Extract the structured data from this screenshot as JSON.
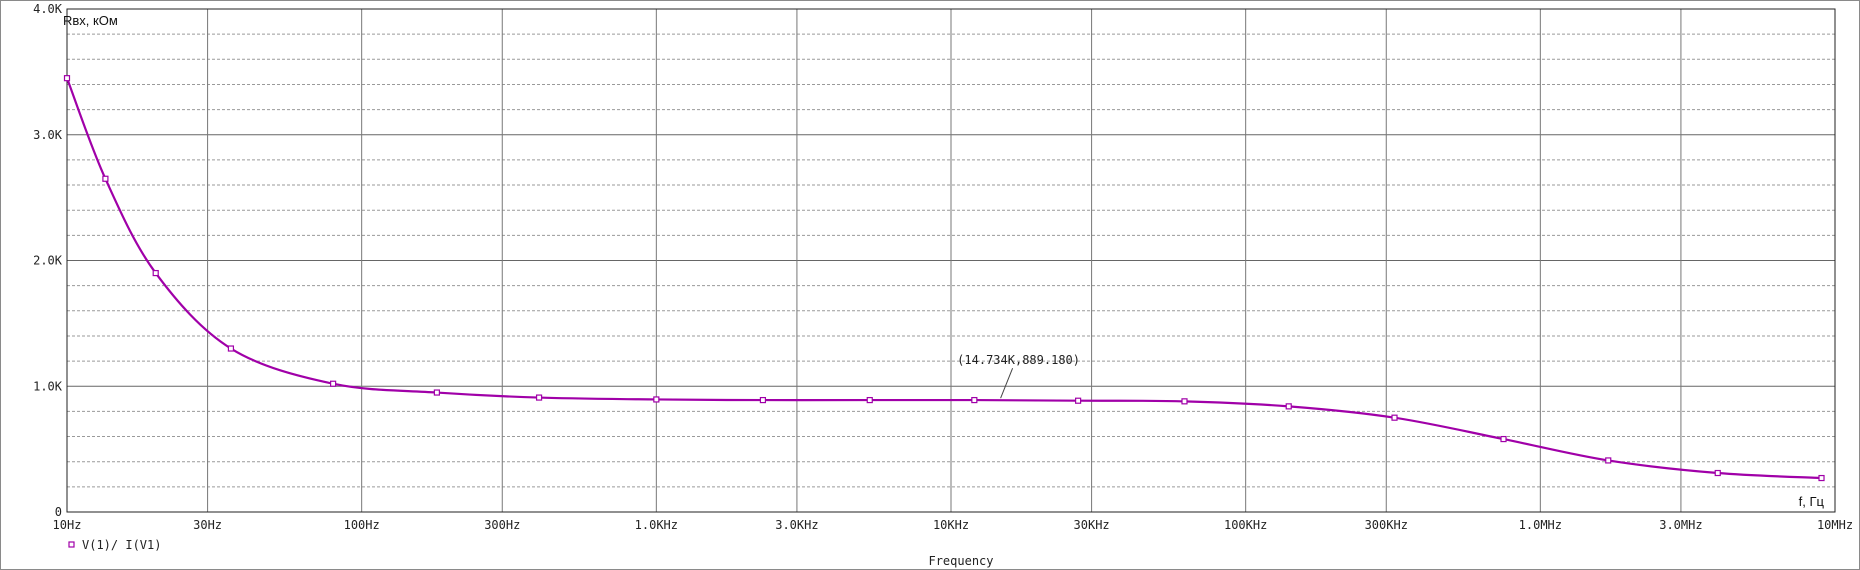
{
  "chart_data": {
    "type": "line",
    "title": "",
    "ylabel": "Rвх, кОм",
    "xlabel": "f, Гц",
    "x_axis_title": "Frequency",
    "x_scale": "log",
    "xlim": [
      10,
      10000000
    ],
    "ylim": [
      0,
      4000
    ],
    "x_ticks": [
      {
        "value": 10,
        "label": "10Hz"
      },
      {
        "value": 30,
        "label": "30Hz"
      },
      {
        "value": 100,
        "label": "100Hz"
      },
      {
        "value": 300,
        "label": "300Hz"
      },
      {
        "value": 1000,
        "label": "1.0KHz"
      },
      {
        "value": 3000,
        "label": "3.0KHz"
      },
      {
        "value": 10000,
        "label": "10KHz"
      },
      {
        "value": 30000,
        "label": "30KHz"
      },
      {
        "value": 100000,
        "label": "100KHz"
      },
      {
        "value": 300000,
        "label": "300KHz"
      },
      {
        "value": 1000000,
        "label": "1.0MHz"
      },
      {
        "value": 3000000,
        "label": "3.0MHz"
      },
      {
        "value": 10000000,
        "label": "10MHz"
      }
    ],
    "y_ticks": [
      {
        "value": 0,
        "label": "0"
      },
      {
        "value": 1000,
        "label": "1.0K"
      },
      {
        "value": 2000,
        "label": "2.0K"
      },
      {
        "value": 3000,
        "label": "3.0K"
      },
      {
        "value": 4000,
        "label": "4.0K"
      }
    ],
    "grid": true,
    "legend_position": "bottom-left",
    "series": [
      {
        "name": "V(1)/ I(V1)",
        "color": "#a000a8",
        "x": [
          10,
          13.5,
          20,
          36,
          80,
          180,
          400,
          1000,
          2300,
          5300,
          12000,
          27000,
          62000,
          140000,
          320000,
          750000,
          1700000,
          4000000,
          9000000
        ],
        "y": [
          3450,
          2650,
          1900,
          1300,
          1020,
          950,
          910,
          895,
          890,
          890,
          890,
          885,
          880,
          840,
          750,
          580,
          410,
          310,
          270
        ]
      }
    ],
    "annotations": [
      {
        "text": "(14.734K,889.180)",
        "x": 14734,
        "y": 889.18
      }
    ]
  }
}
